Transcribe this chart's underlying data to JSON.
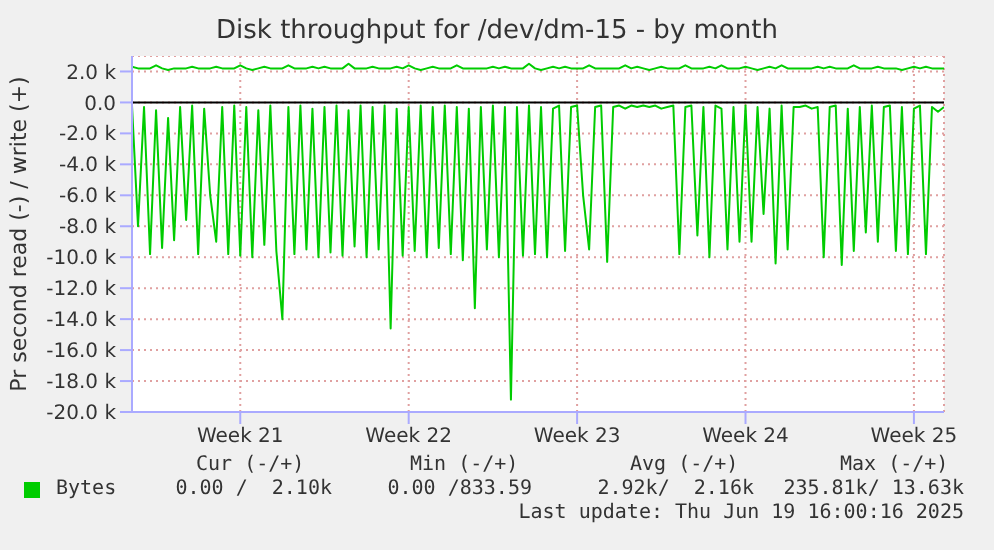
{
  "chart_data": {
    "type": "line",
    "title": "Disk throughput for /dev/dm-15 - by month",
    "ylabel": "Pr second read (-) / write (+)",
    "categories": [
      null,
      null,
      null,
      null,
      null,
      null,
      null,
      null,
      null,
      null,
      null,
      null,
      null,
      null,
      null,
      null,
      null,
      null,
      "Week 21",
      null,
      null,
      null,
      null,
      null,
      null,
      null,
      null,
      null,
      null,
      null,
      null,
      null,
      null,
      null,
      null,
      null,
      null,
      null,
      null,
      null,
      null,
      null,
      null,
      null,
      null,
      null,
      "Week 22",
      null,
      null,
      null,
      null,
      null,
      null,
      null,
      null,
      null,
      null,
      null,
      null,
      null,
      null,
      null,
      null,
      null,
      null,
      null,
      null,
      null,
      null,
      null,
      null,
      null,
      null,
      null,
      "Week 23",
      null,
      null,
      null,
      null,
      null,
      null,
      null,
      null,
      null,
      null,
      null,
      null,
      null,
      null,
      null,
      null,
      null,
      null,
      null,
      null,
      null,
      null,
      null,
      null,
      null,
      null,
      null,
      "Week 24",
      null,
      null,
      null,
      null,
      null,
      null,
      null,
      null,
      null,
      null,
      null,
      null,
      null,
      null,
      null,
      null,
      null,
      null,
      null,
      null,
      null,
      null,
      null,
      null,
      null,
      null,
      null,
      "Week 25",
      null,
      null,
      null,
      null,
      null
    ],
    "ylim": [
      -20000,
      3000
    ],
    "yticks": [
      {
        "value": -20000,
        "label": "-20.0 k"
      },
      {
        "value": -18000,
        "label": "-18.0 k"
      },
      {
        "value": -16000,
        "label": "-16.0 k"
      },
      {
        "value": -14000,
        "label": "-14.0 k"
      },
      {
        "value": -12000,
        "label": "-12.0 k"
      },
      {
        "value": -10000,
        "label": "-10.0 k"
      },
      {
        "value": -8000,
        "label": "-8.0 k"
      },
      {
        "value": -6000,
        "label": "-6.0 k"
      },
      {
        "value": -4000,
        "label": "-4.0 k"
      },
      {
        "value": -2000,
        "label": "-2.0 k"
      },
      {
        "value": 0,
        "label": "0.0"
      },
      {
        "value": 2000,
        "label": "2.0 k"
      }
    ],
    "grid": true,
    "legend": "bottom",
    "marker": "none",
    "ref_lines": [
      {
        "axis": "y",
        "value": 0,
        "color": "#000000"
      }
    ],
    "series": [
      {
        "name": "Bytes",
        "color": "#00cc00",
        "values": [
          2300,
          2200,
          2200,
          2200,
          2400,
          2200,
          2100,
          2200,
          2200,
          2200,
          2300,
          2200,
          2200,
          2200,
          2300,
          2200,
          2200,
          2200,
          2400,
          2200,
          2100,
          2200,
          2300,
          2200,
          2200,
          2200,
          2400,
          2200,
          2200,
          2200,
          2300,
          2200,
          2300,
          2200,
          2200,
          2200,
          2500,
          2200,
          2200,
          2200,
          2300,
          2200,
          2200,
          2200,
          2300,
          2200,
          2400,
          2200,
          2100,
          2200,
          2300,
          2200,
          2200,
          2200,
          2400,
          2200,
          2200,
          2200,
          2200,
          2200,
          2300,
          2200,
          2300,
          2200,
          2200,
          2200,
          2500,
          2200,
          2100,
          2200,
          2300,
          2200,
          2300,
          2200,
          2200,
          2200,
          2400,
          2200,
          2200,
          2200,
          2200,
          2200,
          2400,
          2200,
          2300,
          2200,
          2100,
          2200,
          2300,
          2200,
          2200,
          2200,
          2400,
          2200,
          2200,
          2200,
          2300,
          2200,
          2400,
          2200,
          2200,
          2200,
          2300,
          2200,
          2100,
          2200,
          2300,
          2200,
          2400,
          2200,
          2200,
          2200,
          2200,
          2200,
          2300,
          2200,
          2300,
          2200,
          2200,
          2200,
          2400,
          2200,
          2200,
          2200,
          2300,
          2200,
          2200,
          2200,
          2100,
          2200,
          2300,
          2200,
          2300,
          2200,
          2200,
          2200
        ]
      },
      {
        "color": "#00cc00",
        "values": [
          -200,
          -8000,
          -300,
          -9800,
          -500,
          -9400,
          -1000,
          -8900,
          -300,
          -7600,
          -200,
          -9800,
          -400,
          -6000,
          -9000,
          -300,
          -9800,
          -200,
          -9900,
          -300,
          -10000,
          -500,
          -9200,
          -200,
          -9600,
          -14000,
          -300,
          -9800,
          -200,
          -9500,
          -400,
          -10000,
          -300,
          -9700,
          -200,
          -9900,
          -500,
          -9300,
          -200,
          -10000,
          -300,
          -9500,
          -200,
          -14600,
          -400,
          -9900,
          -300,
          -9600,
          -200,
          -10000,
          -300,
          -9400,
          -200,
          -9800,
          -300,
          -10200,
          -400,
          -13300,
          -300,
          -9500,
          -200,
          -10000,
          -300,
          -19200,
          -300,
          -9900,
          -200,
          -9800,
          -300,
          -10000,
          -400,
          -200,
          -9600,
          -300,
          -200,
          -6000,
          -9500,
          -300,
          -200,
          -10300,
          -300,
          -200,
          -400,
          -200,
          -300,
          -200,
          -300,
          -200,
          -400,
          -300,
          -200,
          -9800,
          -300,
          -200,
          -8600,
          -300,
          -10000,
          -200,
          -400,
          -9500,
          -300,
          -9000,
          -200,
          -9000,
          -300,
          -7200,
          -400,
          -10400,
          -200,
          -9500,
          -300,
          -300,
          -200,
          -400,
          -300,
          -10000,
          -300,
          -200,
          -10500,
          -400,
          -9600,
          -300,
          -8400,
          -200,
          -9000,
          -300,
          -200,
          -9600,
          -300,
          -9800,
          -400,
          -200,
          -9800,
          -300,
          -600,
          -300
        ]
      }
    ],
    "annotations": [
      "Cur (-/+)",
      "Min (-/+)",
      "Avg (-/+)",
      "Max (-/+)",
      "0.00 /  2.10k",
      "0.00 /833.59",
      "2.92k/  2.16k",
      "235.81k/ 13.63k",
      "Last update: Thu Jun 19 16:00:16 2025"
    ]
  }
}
